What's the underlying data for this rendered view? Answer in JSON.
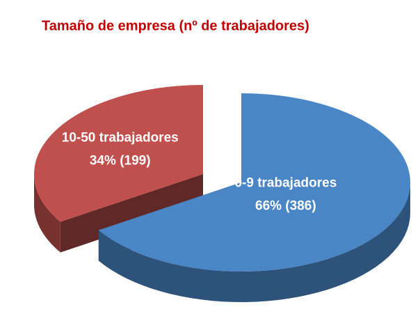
{
  "chart_data": {
    "type": "pie3d",
    "title": "Tamaño de empresa (nº de trabajadores)",
    "categories": [
      "0-9 trabajadores",
      "10-50 trabajadores"
    ],
    "values": [
      66,
      34
    ],
    "value_labels": [
      "66% (386)",
      "34% (199)"
    ],
    "colors": [
      "#4a86c6",
      "#c0504d"
    ]
  }
}
